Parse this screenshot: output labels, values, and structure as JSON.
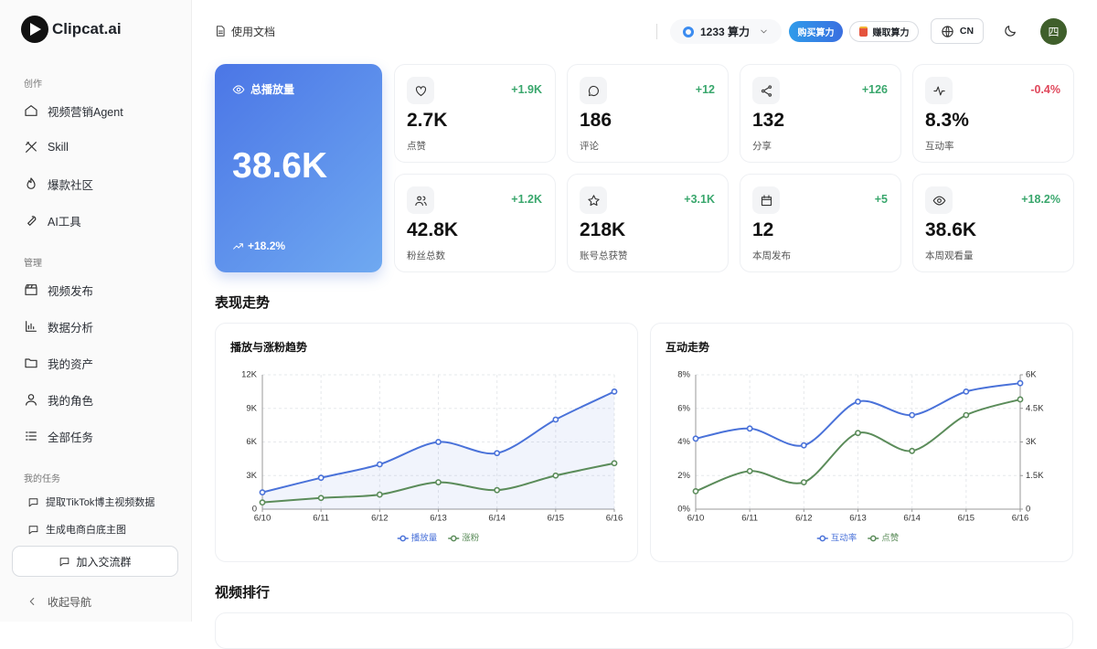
{
  "sidebar": {
    "brand": "Clipcat.ai",
    "sections": [
      {
        "title": "创作",
        "items": [
          "视频营销Agent",
          "Skill",
          "爆款社区",
          "AI工具"
        ]
      },
      {
        "title": "管理",
        "items": [
          "视频发布",
          "数据分析",
          "我的资产",
          "我的角色",
          "全部任务"
        ]
      },
      {
        "title": "我的任务",
        "items": [
          "提取TikTok博主视频数据",
          "生成电商白底主图"
        ]
      }
    ],
    "join_button": "加入交流群",
    "collapse": "收起导航"
  },
  "topbar": {
    "docs": "使用文档",
    "credits": "1233 算力",
    "buy": "购买算力",
    "earn": "赚取算力",
    "lang": "CN",
    "avatar": "四"
  },
  "hero": {
    "label": "总播放量",
    "value": "38.6K",
    "change": "+18.2%"
  },
  "stats": [
    {
      "change": "+1.9K",
      "value": "2.7K",
      "label": "点赞"
    },
    {
      "change": "+12",
      "value": "186",
      "label": "评论"
    },
    {
      "change": "+126",
      "value": "132",
      "label": "分享"
    },
    {
      "change": "-0.4%",
      "value": "8.3%",
      "label": "互动率"
    },
    {
      "change": "+1.2K",
      "value": "42.8K",
      "label": "粉丝总数"
    },
    {
      "change": "+3.1K",
      "value": "218K",
      "label": "账号总获赞"
    },
    {
      "change": "+5",
      "value": "12",
      "label": "本周发布"
    },
    {
      "change": "+18.2%",
      "value": "38.6K",
      "label": "本周观看量"
    }
  ],
  "sections": {
    "trend": "表现走势",
    "ranking": "视频排行"
  },
  "chart_data": [
    {
      "type": "line",
      "title": "播放与涨粉趋势",
      "categories": [
        "6/10",
        "6/11",
        "6/12",
        "6/13",
        "6/14",
        "6/15",
        "6/16"
      ],
      "series": [
        {
          "name": "播放量",
          "color": "#4a72d9",
          "area": true,
          "values": [
            1500,
            2800,
            4000,
            6000,
            5000,
            8000,
            10500
          ]
        },
        {
          "name": "涨粉",
          "color": "#5b8c5a",
          "values": [
            600,
            1000,
            1300,
            2400,
            1700,
            3000,
            4100
          ]
        }
      ],
      "ylim": [
        0,
        12000
      ],
      "yticks": [
        0,
        {
          "value": 3000,
          "label": "3K"
        },
        {
          "value": 6000,
          "label": "6K"
        },
        {
          "value": 9000,
          "label": "9K"
        },
        {
          "value": 12000,
          "label": "12K"
        }
      ],
      "grid": true,
      "legend": "bottom"
    },
    {
      "type": "line",
      "title": "互动走势",
      "categories": [
        "6/10",
        "6/11",
        "6/12",
        "6/13",
        "6/14",
        "6/15",
        "6/16"
      ],
      "series": [
        {
          "name": "互动率",
          "color": "#4a72d9",
          "values": [
            4.2,
            4.8,
            3.8,
            6.4,
            5.6,
            7.0,
            7.5
          ]
        },
        {
          "name": "点赞",
          "color": "#5b8c5a",
          "axis": "y2",
          "values": [
            800,
            1700,
            1200,
            3400,
            2600,
            4200,
            4900
          ]
        }
      ],
      "ylim": [
        0,
        8
      ],
      "yticks": [
        {
          "value": 0,
          "label": "0%"
        },
        {
          "value": 2,
          "label": "2%"
        },
        {
          "value": 4,
          "label": "4%"
        },
        {
          "value": 6,
          "label": "6%"
        },
        {
          "value": 8,
          "label": "8%"
        }
      ],
      "y2lim": [
        0,
        6000
      ],
      "y2ticks": [
        0,
        {
          "value": 1500,
          "label": "1.5K"
        },
        {
          "value": 3000,
          "label": "3K"
        },
        {
          "value": 4500,
          "label": "4.5K"
        },
        {
          "value": 6000,
          "label": "6K"
        }
      ],
      "grid": true,
      "legend": "bottom"
    }
  ]
}
